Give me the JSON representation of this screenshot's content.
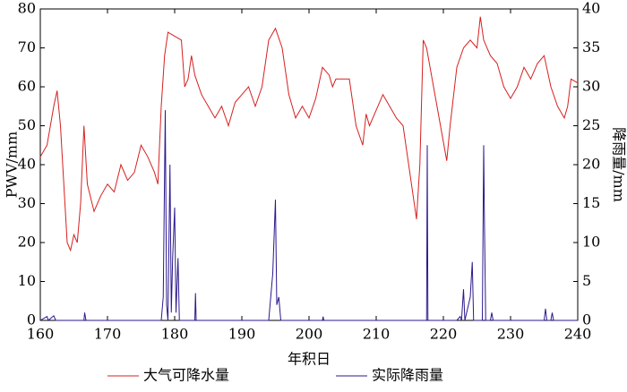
{
  "chart_data": {
    "type": "line",
    "xlabel": "年积日",
    "ylabel": "PWV/mm",
    "y2label": "降雨量/mm",
    "xlim": [
      160,
      240
    ],
    "xticks": [
      160,
      170,
      180,
      190,
      200,
      210,
      220,
      230,
      240
    ],
    "ylim": [
      0,
      80
    ],
    "yticks": [
      0,
      10,
      20,
      30,
      40,
      50,
      60,
      70,
      80
    ],
    "y2lim": [
      0,
      40
    ],
    "y2ticks": [
      0,
      5,
      10,
      15,
      20,
      25,
      30,
      35,
      40
    ],
    "legend": "bottom",
    "series": [
      {
        "name": "大气可降水量",
        "color": "#d62020",
        "x": [
          160,
          161,
          162,
          162.5,
          163,
          163.5,
          164,
          164.5,
          165,
          165.5,
          166,
          166.5,
          167,
          168,
          169,
          170,
          171,
          172,
          173,
          174,
          175,
          176,
          177,
          177.5,
          178,
          178.5,
          179,
          180,
          181,
          181.5,
          182,
          182.5,
          183,
          184,
          185,
          186,
          187,
          188,
          189,
          190,
          191,
          192,
          193,
          194,
          195,
          196,
          197,
          198,
          199,
          200,
          201,
          202,
          203,
          203.5,
          204,
          206,
          207,
          208,
          208.5,
          209,
          211,
          212,
          213,
          214,
          215,
          216,
          216.5,
          217,
          217.5,
          220.5,
          221,
          222,
          223,
          224,
          225,
          225.5,
          226,
          227,
          228,
          229,
          230,
          231,
          232,
          233,
          234,
          235,
          236,
          237,
          238,
          238.5,
          239,
          240
        ],
        "values": [
          42,
          45,
          55,
          59,
          50,
          35,
          20,
          18,
          22,
          20,
          30,
          50,
          35,
          28,
          32,
          35,
          33,
          40,
          36,
          38,
          45,
          42,
          38,
          35,
          55,
          68,
          74,
          73,
          72,
          60,
          62,
          68,
          63,
          58,
          55,
          52,
          55,
          50,
          56,
          58,
          60,
          55,
          60,
          72,
          75,
          70,
          58,
          52,
          55,
          52,
          57,
          65,
          63,
          60,
          62,
          62,
          50,
          45,
          53,
          50,
          58,
          55,
          52,
          50,
          38,
          26,
          40,
          72,
          70,
          41,
          50,
          65,
          70,
          72,
          70,
          78,
          72,
          68,
          66,
          60,
          57,
          60,
          65,
          62,
          66,
          68,
          60,
          55,
          52,
          55,
          62,
          61
        ]
      },
      {
        "name": "实际降雨量",
        "color": "#2a1a8c",
        "axis": "y2",
        "x": [
          160,
          161,
          161.2,
          162,
          162.3,
          166.5,
          166.6,
          166.8,
          178,
          178.3,
          178.6,
          178.8,
          179,
          179.3,
          179.5,
          179.7,
          180,
          180.2,
          180.5,
          180.7,
          183,
          183.1,
          183.2,
          194,
          194.3,
          194.6,
          195,
          195.2,
          195.5,
          195.8,
          202,
          202.1,
          202.2,
          217.5,
          217.6,
          217.7,
          222,
          222.5,
          222.7,
          223,
          223.2,
          224,
          224.3,
          224.5,
          225.8,
          226,
          226.1,
          226.3,
          227,
          227.2,
          227.4,
          235,
          235.2,
          235.4,
          236,
          236.2,
          236.4,
          240
        ],
        "values": [
          0,
          0.5,
          0,
          0.6,
          0,
          0,
          1,
          0,
          0,
          3,
          27,
          2,
          0,
          20,
          1,
          8,
          14.5,
          1,
          8,
          0,
          0,
          3.5,
          0,
          0,
          3,
          6,
          15.5,
          2,
          3,
          0,
          0,
          0.5,
          0,
          0,
          22.5,
          0,
          0,
          0.5,
          0,
          4,
          0,
          3,
          7.5,
          0,
          0,
          22.5,
          13.5,
          0,
          0,
          1,
          0,
          0,
          1.5,
          0,
          0,
          1,
          0,
          0
        ]
      }
    ]
  }
}
